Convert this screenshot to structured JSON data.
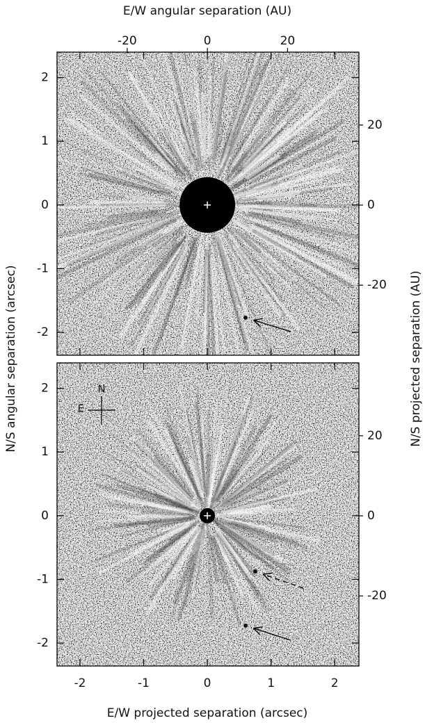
{
  "chart_data": {
    "type": "image",
    "x_top_label": "E/W angular separation (AU)",
    "x_bottom_label": "E/W projected separation (arcsec)",
    "y_left_label": "N/S angular separation (arcsec)",
    "y_right_label": "N/S projected separation (AU)",
    "xlim": [
      -2.36,
      2.38
    ],
    "xticks": [
      -2,
      -1,
      0,
      1,
      2
    ],
    "x2lim": [
      -37.5,
      37.8
    ],
    "x2ticks": [
      -20,
      0,
      20
    ],
    "ylim": [
      -2.36,
      2.4
    ],
    "yticks": [
      -2,
      -1,
      0,
      1,
      2
    ],
    "y2lim": [
      -37.5,
      38.2
    ],
    "y2ticks": [
      -20,
      0,
      20
    ],
    "compass": {
      "north": "N",
      "east": "E"
    }
  }
}
